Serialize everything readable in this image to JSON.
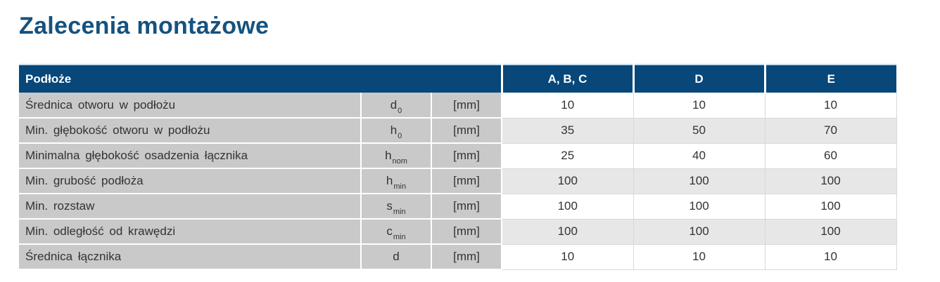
{
  "page": {
    "title": "Zalecenia montażowe"
  },
  "colors": {
    "title_color": "#15527f",
    "header_bg": "#07477a",
    "header_text": "#ffffff",
    "cell_gray": "#c9c9c9",
    "row_alt": "#e7e7e7",
    "grid_light": "#d9d9d9"
  },
  "table": {
    "header": {
      "label": "Podłoże",
      "columns": [
        "A, B, C",
        "D",
        "E"
      ]
    },
    "rows": [
      {
        "label": "Średnica  otworu w podłożu",
        "symbol_base": "d",
        "symbol_sub": "0",
        "unit": "[mm]",
        "values": [
          "10",
          "10",
          "10"
        ]
      },
      {
        "label": "Min. głębokość  otworu w podłożu",
        "symbol_base": "h",
        "symbol_sub": "0",
        "unit": "[mm]",
        "values": [
          "35",
          "50",
          "70"
        ]
      },
      {
        "label": "Minimalna  głębokość  osadzenia  łącznika",
        "symbol_base": "h",
        "symbol_sub": "nom",
        "unit": "[mm]",
        "values": [
          "25",
          "40",
          "60"
        ]
      },
      {
        "label": "Min. grubość  podłoża",
        "symbol_base": "h",
        "symbol_sub": "min",
        "unit": "[mm]",
        "values": [
          "100",
          "100",
          "100"
        ]
      },
      {
        "label": "Min. rozstaw",
        "symbol_base": "s",
        "symbol_sub": "min",
        "unit": "[mm]",
        "values": [
          "100",
          "100",
          "100"
        ]
      },
      {
        "label": "Min. odległość  od krawędzi",
        "symbol_base": "c",
        "symbol_sub": "min",
        "unit": "[mm]",
        "values": [
          "100",
          "100",
          "100"
        ]
      },
      {
        "label": "Średnica  łącznika",
        "symbol_base": "d",
        "symbol_sub": "",
        "unit": "[mm]",
        "values": [
          "10",
          "10",
          "10"
        ]
      }
    ]
  }
}
